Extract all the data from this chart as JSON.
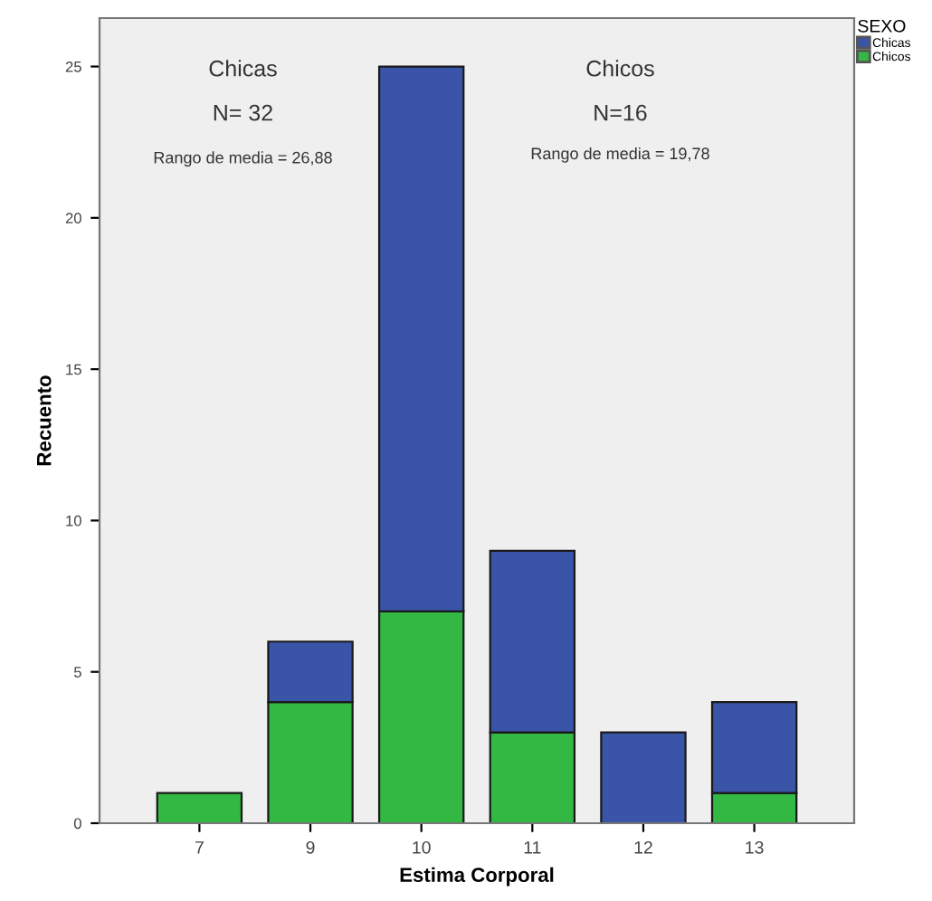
{
  "chart_data": {
    "type": "bar",
    "stacked": true,
    "xlabel": "Estima Corporal",
    "ylabel": "Recuento",
    "legend_title": "SEXO",
    "legend": "top right",
    "categories": [
      "7",
      "9",
      "10",
      "11",
      "12",
      "13"
    ],
    "series": [
      {
        "name": "Chicos",
        "color": "#33b843",
        "values": [
          1,
          4,
          7,
          3,
          0,
          1
        ]
      },
      {
        "name": "Chicas",
        "color": "#3a54a8",
        "values": [
          0,
          2,
          18,
          6,
          3,
          3
        ]
      }
    ],
    "ylim": [
      0,
      26.6
    ],
    "yticks": [
      0,
      5,
      10,
      15,
      20,
      25
    ],
    "grid": false,
    "annotations": [
      "Chicas",
      "N= 32",
      "Rango de media = 26,88",
      "Chicos",
      "N=16",
      "Rango de media = 19,78"
    ]
  }
}
